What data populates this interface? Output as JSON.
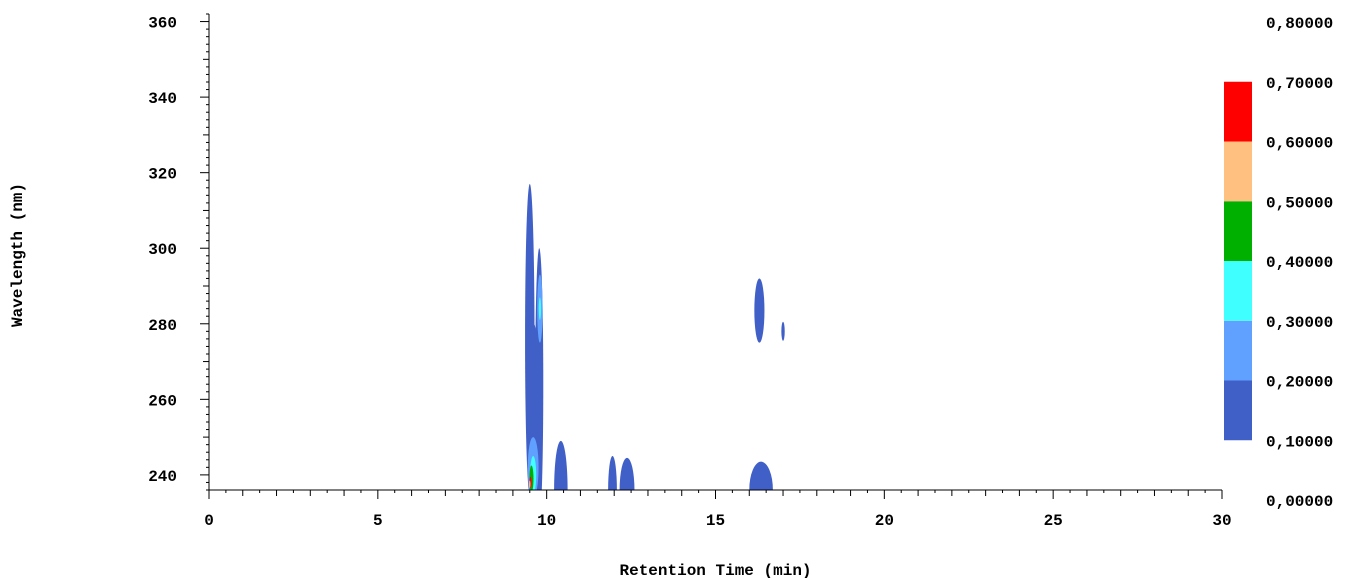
{
  "chart_data": {
    "type": "heatmap",
    "xlabel": "Retention Time (min)",
    "ylabel": "Wavelength (nm)",
    "xlim": [
      0,
      30
    ],
    "ylim": [
      236,
      362
    ],
    "x_ticks": [
      "0",
      "5",
      "10",
      "15",
      "20",
      "25",
      "30"
    ],
    "y_ticks": [
      "240",
      "260",
      "280",
      "300",
      "320",
      "340",
      "360"
    ],
    "colorbar": {
      "labels": [
        "0,80000",
        "0,70000",
        "0,60000",
        "0,50000",
        "0,40000",
        "0,30000",
        "0,20000",
        "0,10000",
        "0,00000"
      ],
      "bins": [
        {
          "range": [
            0.1,
            0.2
          ],
          "color": "#4060c8"
        },
        {
          "range": [
            0.2,
            0.3
          ],
          "color": "#60a0ff"
        },
        {
          "range": [
            0.3,
            0.4
          ],
          "color": "#40ffff"
        },
        {
          "range": [
            0.4,
            0.5
          ],
          "color": "#00b000"
        },
        {
          "range": [
            0.5,
            0.6
          ],
          "color": "#ffc080"
        },
        {
          "range": [
            0.6,
            0.7
          ],
          "color": "#ff0000"
        }
      ]
    },
    "regions": [
      {
        "level": 0.1,
        "color": "#4060c8",
        "shape": "ellipse",
        "cx": 9.5,
        "cy": 276,
        "rx": 0.14,
        "ry": 41
      },
      {
        "level": 0.1,
        "color": "#4060c8",
        "shape": "ellipse",
        "cx": 9.78,
        "cy": 264,
        "rx": 0.12,
        "ry": 36
      },
      {
        "level": 0.1,
        "color": "#4060c8",
        "shape": "ellipse",
        "cx": 9.62,
        "cy": 258,
        "rx": 0.15,
        "ry": 22
      },
      {
        "level": 0.2,
        "color": "#60a0ff",
        "shape": "ellipse",
        "cx": 9.8,
        "cy": 284,
        "rx": 0.08,
        "ry": 9
      },
      {
        "level": 0.3,
        "color": "#40ffff",
        "shape": "ellipse",
        "cx": 9.8,
        "cy": 284,
        "rx": 0.035,
        "ry": 3
      },
      {
        "level": 0.2,
        "color": "#60a0ff",
        "shape": "ellipse",
        "cx": 9.6,
        "cy": 242,
        "rx": 0.16,
        "ry": 8
      },
      {
        "level": 0.3,
        "color": "#40ffff",
        "shape": "ellipse",
        "cx": 9.6,
        "cy": 240,
        "rx": 0.09,
        "ry": 5
      },
      {
        "level": 0.4,
        "color": "#00b000",
        "shape": "ellipse",
        "cx": 9.55,
        "cy": 239,
        "rx": 0.06,
        "ry": 3.5
      },
      {
        "level": 0.6,
        "color": "#ff0000",
        "shape": "ellipse",
        "cx": 9.52,
        "cy": 238,
        "rx": 0.035,
        "ry": 1.5
      },
      {
        "level": 0.5,
        "color": "#ffc080",
        "shape": "ellipse",
        "cx": 9.5,
        "cy": 237.5,
        "rx": 0.02,
        "ry": 1
      },
      {
        "level": 0.1,
        "color": "#4060c8",
        "shape": "ellipse",
        "cx": 10.42,
        "cy": 236,
        "rx": 0.2,
        "ry": 13
      },
      {
        "level": 0.1,
        "color": "#4060c8",
        "shape": "ellipse",
        "cx": 11.95,
        "cy": 236,
        "rx": 0.13,
        "ry": 9
      },
      {
        "level": 0.1,
        "color": "#4060c8",
        "shape": "ellipse",
        "cx": 12.38,
        "cy": 236,
        "rx": 0.22,
        "ry": 8.5
      },
      {
        "level": 0.1,
        "color": "#4060c8",
        "shape": "ellipse",
        "cx": 16.3,
        "cy": 283.5,
        "rx": 0.15,
        "ry": 8.5
      },
      {
        "level": 0.1,
        "color": "#4060c8",
        "shape": "ellipse",
        "cx": 17.0,
        "cy": 278,
        "rx": 0.05,
        "ry": 2.5
      },
      {
        "level": 0.1,
        "color": "#4060c8",
        "shape": "ellipse",
        "cx": 16.35,
        "cy": 236,
        "rx": 0.35,
        "ry": 7.5
      }
    ]
  }
}
